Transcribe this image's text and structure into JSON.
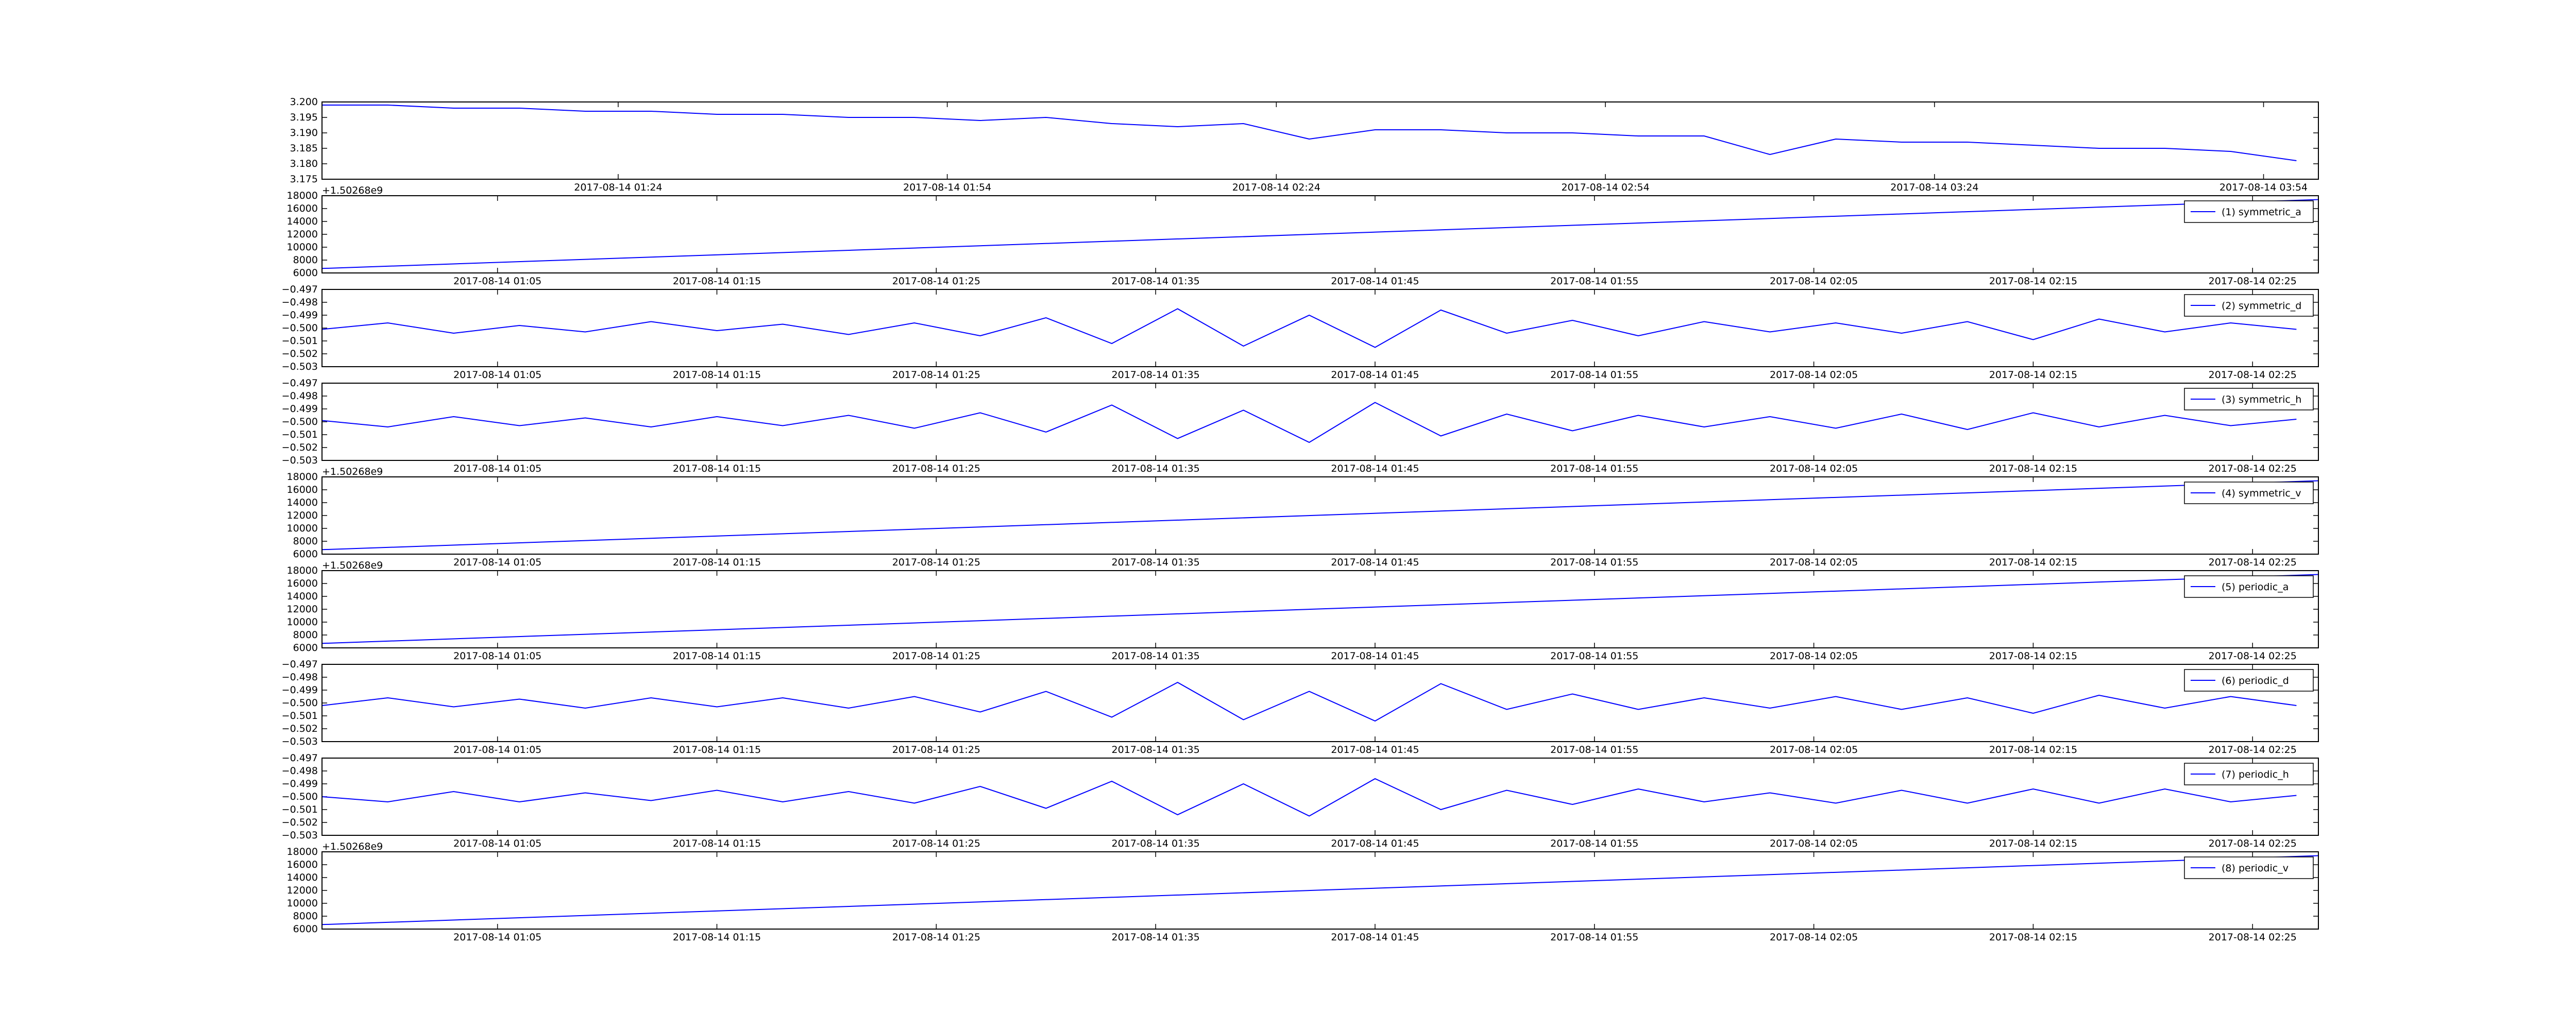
{
  "chart_data": [
    {
      "type": "line",
      "x": [
        "2017-08-14 00:57",
        "2017-08-14 01:03",
        "2017-08-14 01:09",
        "2017-08-14 01:15",
        "2017-08-14 01:21",
        "2017-08-14 01:27",
        "2017-08-14 01:33",
        "2017-08-14 01:39",
        "2017-08-14 01:45",
        "2017-08-14 01:51",
        "2017-08-14 01:57",
        "2017-08-14 02:03",
        "2017-08-14 02:09",
        "2017-08-14 02:15",
        "2017-08-14 02:21",
        "2017-08-14 02:27",
        "2017-08-14 02:33",
        "2017-08-14 02:39",
        "2017-08-14 02:45",
        "2017-08-14 02:51",
        "2017-08-14 02:57",
        "2017-08-14 03:03",
        "2017-08-14 03:09",
        "2017-08-14 03:15",
        "2017-08-14 03:21",
        "2017-08-14 03:27",
        "2017-08-14 03:33",
        "2017-08-14 03:39",
        "2017-08-14 03:45",
        "2017-08-14 03:51",
        "2017-08-14 03:57"
      ],
      "series": [
        {
          "color": "#0000ff",
          "values": [
            3.199,
            3.199,
            3.198,
            3.198,
            3.197,
            3.197,
            3.196,
            3.196,
            3.195,
            3.195,
            3.194,
            3.195,
            3.193,
            3.192,
            3.193,
            3.188,
            3.191,
            3.191,
            3.19,
            3.19,
            3.189,
            3.189,
            3.183,
            3.188,
            3.187,
            3.187,
            3.186,
            3.185,
            3.185,
            3.184,
            3.181
          ]
        }
      ],
      "xlim": [
        "2017-08-14 00:57",
        "2017-08-14 03:59"
      ],
      "xticks": [
        "2017-08-14 01:24",
        "2017-08-14 01:54",
        "2017-08-14 02:24",
        "2017-08-14 02:54",
        "2017-08-14 03:24",
        "2017-08-14 03:54"
      ],
      "ylim": [
        3.175,
        3.2
      ],
      "yticks": [
        3.175,
        {
          "value": 3.18,
          "label": "3.180"
        },
        3.185,
        {
          "value": 3.19,
          "label": "3.190"
        },
        3.195,
        {
          "value": 3.2,
          "label": "3.200"
        }
      ]
    },
    {
      "type": "line",
      "y_offset_label": "+1.50268e9",
      "x": [
        "2017-08-14 00:57",
        "2017-08-14 02:28"
      ],
      "series": [
        {
          "name": "(1) symmetric_a",
          "color": "#0000ff",
          "values": [
            6700,
            17400
          ]
        }
      ],
      "xlim": [
        "2017-08-14 00:57",
        "2017-08-14 02:28"
      ],
      "xticks": [
        "2017-08-14 01:05",
        "2017-08-14 01:15",
        "2017-08-14 01:25",
        "2017-08-14 01:35",
        "2017-08-14 01:45",
        "2017-08-14 01:55",
        "2017-08-14 02:05",
        "2017-08-14 02:15",
        "2017-08-14 02:25"
      ],
      "ylim": [
        6000,
        18000
      ],
      "yticks": [
        6000,
        8000,
        10000,
        12000,
        14000,
        16000,
        18000
      ],
      "legend": "upper right"
    },
    {
      "type": "line",
      "x": [
        "2017-08-14 00:57",
        "2017-08-14 01:00",
        "2017-08-14 01:03",
        "2017-08-14 01:06",
        "2017-08-14 01:09",
        "2017-08-14 01:12",
        "2017-08-14 01:15",
        "2017-08-14 01:18",
        "2017-08-14 01:21",
        "2017-08-14 01:24",
        "2017-08-14 01:27",
        "2017-08-14 01:30",
        "2017-08-14 01:33",
        "2017-08-14 01:36",
        "2017-08-14 01:39",
        "2017-08-14 01:42",
        "2017-08-14 01:45",
        "2017-08-14 01:48",
        "2017-08-14 01:51",
        "2017-08-14 01:54",
        "2017-08-14 01:57",
        "2017-08-14 02:00",
        "2017-08-14 02:03",
        "2017-08-14 02:06",
        "2017-08-14 02:09",
        "2017-08-14 02:12",
        "2017-08-14 02:15",
        "2017-08-14 02:18",
        "2017-08-14 02:21",
        "2017-08-14 02:24",
        "2017-08-14 02:27"
      ],
      "series": [
        {
          "name": "(2) symmetric_d",
          "color": "#0000ff",
          "values": [
            -0.5001,
            -0.4996,
            -0.5004,
            -0.4998,
            -0.5003,
            -0.4995,
            -0.5002,
            -0.4997,
            -0.5005,
            -0.4996,
            -0.5006,
            -0.4992,
            -0.5012,
            -0.4985,
            -0.5014,
            -0.499,
            -0.5015,
            -0.4986,
            -0.5004,
            -0.4994,
            -0.5006,
            -0.4995,
            -0.5003,
            -0.4996,
            -0.5004,
            -0.4995,
            -0.5009,
            -0.4993,
            -0.5003,
            -0.4996,
            -0.5001
          ]
        }
      ],
      "xlim": [
        "2017-08-14 00:57",
        "2017-08-14 02:28"
      ],
      "xticks": [
        "2017-08-14 01:05",
        "2017-08-14 01:15",
        "2017-08-14 01:25",
        "2017-08-14 01:35",
        "2017-08-14 01:45",
        "2017-08-14 01:55",
        "2017-08-14 02:05",
        "2017-08-14 02:15",
        "2017-08-14 02:25"
      ],
      "ylim": [
        -0.503,
        -0.497
      ],
      "yticks": [
        {
          "value": -0.503,
          "label": "−0.503"
        },
        {
          "value": -0.502,
          "label": "−0.502"
        },
        {
          "value": -0.501,
          "label": "−0.501"
        },
        {
          "value": -0.5,
          "label": "−0.500"
        },
        {
          "value": -0.499,
          "label": "−0.499"
        },
        {
          "value": -0.498,
          "label": "−0.498"
        },
        {
          "value": -0.497,
          "label": "−0.497"
        }
      ],
      "legend": "upper right"
    },
    {
      "type": "line",
      "x": [
        "2017-08-14 00:57",
        "2017-08-14 01:00",
        "2017-08-14 01:03",
        "2017-08-14 01:06",
        "2017-08-14 01:09",
        "2017-08-14 01:12",
        "2017-08-14 01:15",
        "2017-08-14 01:18",
        "2017-08-14 01:21",
        "2017-08-14 01:24",
        "2017-08-14 01:27",
        "2017-08-14 01:30",
        "2017-08-14 01:33",
        "2017-08-14 01:36",
        "2017-08-14 01:39",
        "2017-08-14 01:42",
        "2017-08-14 01:45",
        "2017-08-14 01:48",
        "2017-08-14 01:51",
        "2017-08-14 01:54",
        "2017-08-14 01:57",
        "2017-08-14 02:00",
        "2017-08-14 02:03",
        "2017-08-14 02:06",
        "2017-08-14 02:09",
        "2017-08-14 02:12",
        "2017-08-14 02:15",
        "2017-08-14 02:18",
        "2017-08-14 02:21",
        "2017-08-14 02:24",
        "2017-08-14 02:27"
      ],
      "series": [
        {
          "name": "(3) symmetric_h",
          "color": "#0000ff",
          "values": [
            -0.4999,
            -0.5004,
            -0.4996,
            -0.5003,
            -0.4997,
            -0.5004,
            -0.4996,
            -0.5003,
            -0.4995,
            -0.5005,
            -0.4993,
            -0.5008,
            -0.4987,
            -0.5013,
            -0.4991,
            -0.5016,
            -0.4985,
            -0.5011,
            -0.4994,
            -0.5007,
            -0.4995,
            -0.5004,
            -0.4996,
            -0.5005,
            -0.4994,
            -0.5006,
            -0.4993,
            -0.5004,
            -0.4995,
            -0.5003,
            -0.4998
          ]
        }
      ],
      "xlim": [
        "2017-08-14 00:57",
        "2017-08-14 02:28"
      ],
      "xticks": [
        "2017-08-14 01:05",
        "2017-08-14 01:15",
        "2017-08-14 01:25",
        "2017-08-14 01:35",
        "2017-08-14 01:45",
        "2017-08-14 01:55",
        "2017-08-14 02:05",
        "2017-08-14 02:15",
        "2017-08-14 02:25"
      ],
      "ylim": [
        -0.503,
        -0.497
      ],
      "yticks": [
        {
          "value": -0.503,
          "label": "−0.503"
        },
        {
          "value": -0.502,
          "label": "−0.502"
        },
        {
          "value": -0.501,
          "label": "−0.501"
        },
        {
          "value": -0.5,
          "label": "−0.500"
        },
        {
          "value": -0.499,
          "label": "−0.499"
        },
        {
          "value": -0.498,
          "label": "−0.498"
        },
        {
          "value": -0.497,
          "label": "−0.497"
        }
      ],
      "legend": "upper right"
    },
    {
      "type": "line",
      "y_offset_label": "+1.50268e9",
      "x": [
        "2017-08-14 00:57",
        "2017-08-14 02:28"
      ],
      "series": [
        {
          "name": "(4) symmetric_v",
          "color": "#0000ff",
          "values": [
            6700,
            17400
          ]
        }
      ],
      "xlim": [
        "2017-08-14 00:57",
        "2017-08-14 02:28"
      ],
      "xticks": [
        "2017-08-14 01:05",
        "2017-08-14 01:15",
        "2017-08-14 01:25",
        "2017-08-14 01:35",
        "2017-08-14 01:45",
        "2017-08-14 01:55",
        "2017-08-14 02:05",
        "2017-08-14 02:15",
        "2017-08-14 02:25"
      ],
      "ylim": [
        6000,
        18000
      ],
      "yticks": [
        6000,
        8000,
        10000,
        12000,
        14000,
        16000,
        18000
      ],
      "legend": "upper right"
    },
    {
      "type": "line",
      "y_offset_label": "+1.50268e9",
      "x": [
        "2017-08-14 00:57",
        "2017-08-14 02:28"
      ],
      "series": [
        {
          "name": "(5) periodic_a",
          "color": "#0000ff",
          "values": [
            6700,
            17400
          ]
        }
      ],
      "xlim": [
        "2017-08-14 00:57",
        "2017-08-14 02:28"
      ],
      "xticks": [
        "2017-08-14 01:05",
        "2017-08-14 01:15",
        "2017-08-14 01:25",
        "2017-08-14 01:35",
        "2017-08-14 01:45",
        "2017-08-14 01:55",
        "2017-08-14 02:05",
        "2017-08-14 02:15",
        "2017-08-14 02:25"
      ],
      "ylim": [
        6000,
        18000
      ],
      "yticks": [
        6000,
        8000,
        10000,
        12000,
        14000,
        16000,
        18000
      ],
      "legend": "upper right"
    },
    {
      "type": "line",
      "x": [
        "2017-08-14 00:57",
        "2017-08-14 01:00",
        "2017-08-14 01:03",
        "2017-08-14 01:06",
        "2017-08-14 01:09",
        "2017-08-14 01:12",
        "2017-08-14 01:15",
        "2017-08-14 01:18",
        "2017-08-14 01:21",
        "2017-08-14 01:24",
        "2017-08-14 01:27",
        "2017-08-14 01:30",
        "2017-08-14 01:33",
        "2017-08-14 01:36",
        "2017-08-14 01:39",
        "2017-08-14 01:42",
        "2017-08-14 01:45",
        "2017-08-14 01:48",
        "2017-08-14 01:51",
        "2017-08-14 01:54",
        "2017-08-14 01:57",
        "2017-08-14 02:00",
        "2017-08-14 02:03",
        "2017-08-14 02:06",
        "2017-08-14 02:09",
        "2017-08-14 02:12",
        "2017-08-14 02:15",
        "2017-08-14 02:18",
        "2017-08-14 02:21",
        "2017-08-14 02:24",
        "2017-08-14 02:27"
      ],
      "series": [
        {
          "name": "(6) periodic_d",
          "color": "#0000ff",
          "values": [
            -0.5002,
            -0.4996,
            -0.5003,
            -0.4997,
            -0.5004,
            -0.4996,
            -0.5003,
            -0.4996,
            -0.5004,
            -0.4995,
            -0.5007,
            -0.4991,
            -0.5011,
            -0.4984,
            -0.5013,
            -0.4991,
            -0.5014,
            -0.4985,
            -0.5005,
            -0.4993,
            -0.5005,
            -0.4996,
            -0.5004,
            -0.4995,
            -0.5005,
            -0.4996,
            -0.5008,
            -0.4994,
            -0.5004,
            -0.4995,
            -0.5002
          ]
        }
      ],
      "xlim": [
        "2017-08-14 00:57",
        "2017-08-14 02:28"
      ],
      "xticks": [
        "2017-08-14 01:05",
        "2017-08-14 01:15",
        "2017-08-14 01:25",
        "2017-08-14 01:35",
        "2017-08-14 01:45",
        "2017-08-14 01:55",
        "2017-08-14 02:05",
        "2017-08-14 02:15",
        "2017-08-14 02:25"
      ],
      "ylim": [
        -0.503,
        -0.497
      ],
      "yticks": [
        {
          "value": -0.503,
          "label": "−0.503"
        },
        {
          "value": -0.502,
          "label": "−0.502"
        },
        {
          "value": -0.501,
          "label": "−0.501"
        },
        {
          "value": -0.5,
          "label": "−0.500"
        },
        {
          "value": -0.499,
          "label": "−0.499"
        },
        {
          "value": -0.498,
          "label": "−0.498"
        },
        {
          "value": -0.497,
          "label": "−0.497"
        }
      ],
      "legend": "upper right"
    },
    {
      "type": "line",
      "x": [
        "2017-08-14 00:57",
        "2017-08-14 01:00",
        "2017-08-14 01:03",
        "2017-08-14 01:06",
        "2017-08-14 01:09",
        "2017-08-14 01:12",
        "2017-08-14 01:15",
        "2017-08-14 01:18",
        "2017-08-14 01:21",
        "2017-08-14 01:24",
        "2017-08-14 01:27",
        "2017-08-14 01:30",
        "2017-08-14 01:33",
        "2017-08-14 01:36",
        "2017-08-14 01:39",
        "2017-08-14 01:42",
        "2017-08-14 01:45",
        "2017-08-14 01:48",
        "2017-08-14 01:51",
        "2017-08-14 01:54",
        "2017-08-14 01:57",
        "2017-08-14 02:00",
        "2017-08-14 02:03",
        "2017-08-14 02:06",
        "2017-08-14 02:09",
        "2017-08-14 02:12",
        "2017-08-14 02:15",
        "2017-08-14 02:18",
        "2017-08-14 02:21",
        "2017-08-14 02:24",
        "2017-08-14 02:27"
      ],
      "series": [
        {
          "name": "(7) periodic_h",
          "color": "#0000ff",
          "values": [
            -0.5,
            -0.5004,
            -0.4996,
            -0.5004,
            -0.4997,
            -0.5003,
            -0.4995,
            -0.5004,
            -0.4996,
            -0.5005,
            -0.4992,
            -0.5009,
            -0.4988,
            -0.5014,
            -0.499,
            -0.5015,
            -0.4986,
            -0.501,
            -0.4995,
            -0.5006,
            -0.4994,
            -0.5004,
            -0.4997,
            -0.5005,
            -0.4995,
            -0.5005,
            -0.4994,
            -0.5005,
            -0.4994,
            -0.5004,
            -0.4999
          ]
        }
      ],
      "xlim": [
        "2017-08-14 00:57",
        "2017-08-14 02:28"
      ],
      "xticks": [
        "2017-08-14 01:05",
        "2017-08-14 01:15",
        "2017-08-14 01:25",
        "2017-08-14 01:35",
        "2017-08-14 01:45",
        "2017-08-14 01:55",
        "2017-08-14 02:05",
        "2017-08-14 02:15",
        "2017-08-14 02:25"
      ],
      "ylim": [
        -0.503,
        -0.497
      ],
      "yticks": [
        {
          "value": -0.503,
          "label": "−0.503"
        },
        {
          "value": -0.502,
          "label": "−0.502"
        },
        {
          "value": -0.501,
          "label": "−0.501"
        },
        {
          "value": -0.5,
          "label": "−0.500"
        },
        {
          "value": -0.499,
          "label": "−0.499"
        },
        {
          "value": -0.498,
          "label": "−0.498"
        },
        {
          "value": -0.497,
          "label": "−0.497"
        }
      ],
      "legend": "upper right"
    },
    {
      "type": "line",
      "y_offset_label": "+1.50268e9",
      "x": [
        "2017-08-14 00:57",
        "2017-08-14 02:28"
      ],
      "series": [
        {
          "name": "(8) periodic_v",
          "color": "#0000ff",
          "values": [
            6700,
            17400
          ]
        }
      ],
      "xlim": [
        "2017-08-14 00:57",
        "2017-08-14 02:28"
      ],
      "xticks": [
        "2017-08-14 01:05",
        "2017-08-14 01:15",
        "2017-08-14 01:25",
        "2017-08-14 01:35",
        "2017-08-14 01:45",
        "2017-08-14 01:55",
        "2017-08-14 02:05",
        "2017-08-14 02:15",
        "2017-08-14 02:25"
      ],
      "ylim": [
        6000,
        18000
      ],
      "yticks": [
        6000,
        8000,
        10000,
        12000,
        14000,
        16000,
        18000
      ],
      "legend": "upper right"
    }
  ]
}
